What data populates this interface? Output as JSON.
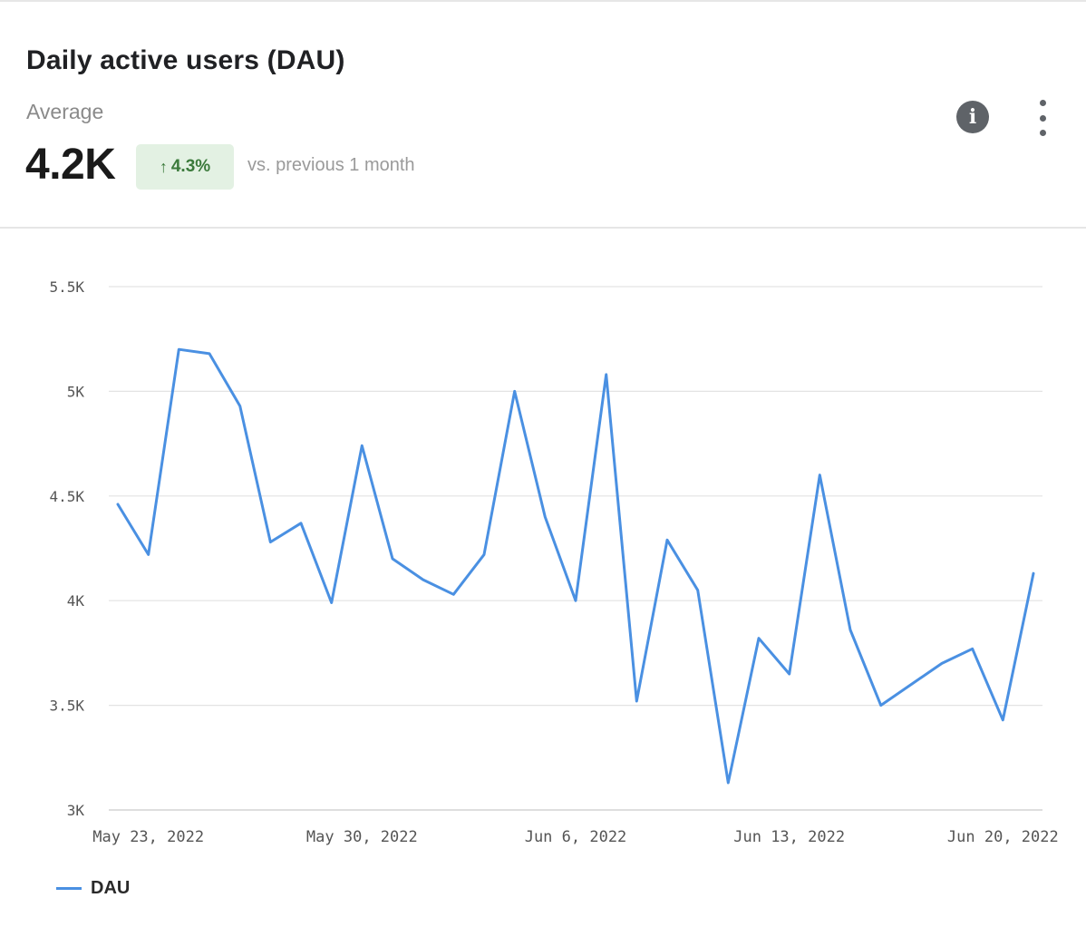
{
  "card": {
    "title": "Daily active users (DAU)",
    "metric_label": "Average",
    "metric_value": "4.2K",
    "delta_arrow": "↑",
    "delta_value": "4.3%",
    "comparison_text": "vs. previous 1 month",
    "info_icon_glyph": "i"
  },
  "colors": {
    "series": "#4a90e2",
    "delta_bg": "#e3f1e3",
    "delta_text": "#3b7a3b",
    "gridline": "#e3e3e3"
  },
  "chart_data": {
    "type": "line",
    "x": [
      "2022-05-22",
      "2022-05-23",
      "2022-05-24",
      "2022-05-25",
      "2022-05-26",
      "2022-05-27",
      "2022-05-28",
      "2022-05-29",
      "2022-05-30",
      "2022-05-31",
      "2022-06-01",
      "2022-06-02",
      "2022-06-03",
      "2022-06-04",
      "2022-06-05",
      "2022-06-06",
      "2022-06-07",
      "2022-06-08",
      "2022-06-09",
      "2022-06-10",
      "2022-06-11",
      "2022-06-12",
      "2022-06-13",
      "2022-06-14",
      "2022-06-15",
      "2022-06-16",
      "2022-06-17",
      "2022-06-18",
      "2022-06-19",
      "2022-06-20",
      "2022-06-21"
    ],
    "series": [
      {
        "name": "DAU",
        "values": [
          4460,
          4220,
          5200,
          5180,
          4930,
          4280,
          4370,
          3990,
          4740,
          4200,
          4100,
          4030,
          4220,
          5000,
          4400,
          4000,
          5080,
          3520,
          4290,
          4050,
          3130,
          3820,
          3650,
          4600,
          3860,
          3500,
          3600,
          3700,
          3770,
          3430,
          4130
        ]
      }
    ],
    "x_ticks": [
      {
        "x": "2022-05-23",
        "label": "May 23, 2022"
      },
      {
        "x": "2022-05-30",
        "label": "May 30, 2022"
      },
      {
        "x": "2022-06-06",
        "label": "Jun 6, 2022"
      },
      {
        "x": "2022-06-13",
        "label": "Jun 13, 2022"
      },
      {
        "x": "2022-06-20",
        "label": "Jun 20, 2022"
      }
    ],
    "y_ticks": [
      {
        "value": 3000,
        "label": "3K"
      },
      {
        "value": 3500,
        "label": "3.5K"
      },
      {
        "value": 4000,
        "label": "4K"
      },
      {
        "value": 4500,
        "label": "4.5K"
      },
      {
        "value": 5000,
        "label": "5K"
      },
      {
        "value": 5500,
        "label": "5.5K"
      }
    ],
    "ylim": [
      3000,
      5500
    ],
    "grid": true,
    "legend": "bottom-left"
  }
}
